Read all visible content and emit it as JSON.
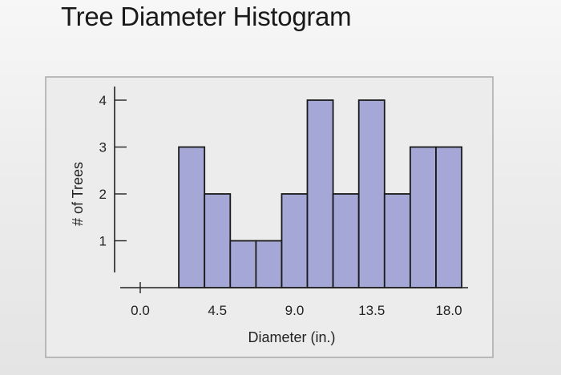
{
  "title": "Tree Diameter Histogram",
  "chart_data": {
    "type": "bar",
    "title": "Tree Diameter Histogram",
    "xlabel": "Diameter (in.)",
    "ylabel": "# of Trees",
    "xlim": [
      0,
      18.5
    ],
    "ylim": [
      0,
      4.3
    ],
    "x_ticks": [
      "0.0",
      "4.5",
      "9.0",
      "13.5",
      "18.0"
    ],
    "y_ticks": [
      "1",
      "2",
      "3",
      "4"
    ],
    "bins": [
      {
        "x0": 2.25,
        "x1": 3.75,
        "count": 3
      },
      {
        "x0": 3.75,
        "x1": 5.25,
        "count": 2
      },
      {
        "x0": 5.25,
        "x1": 6.75,
        "count": 1
      },
      {
        "x0": 6.75,
        "x1": 8.25,
        "count": 1
      },
      {
        "x0": 8.25,
        "x1": 9.75,
        "count": 2
      },
      {
        "x0": 9.75,
        "x1": 11.25,
        "count": 4
      },
      {
        "x0": 11.25,
        "x1": 12.75,
        "count": 2
      },
      {
        "x0": 12.75,
        "x1": 14.25,
        "count": 4
      },
      {
        "x0": 14.25,
        "x1": 15.75,
        "count": 2
      },
      {
        "x0": 15.75,
        "x1": 17.25,
        "count": 3
      },
      {
        "x0": 17.25,
        "x1": 18.75,
        "count": 3
      }
    ],
    "bar_color": "#a5a8d6",
    "grid": false,
    "legend": "none"
  }
}
